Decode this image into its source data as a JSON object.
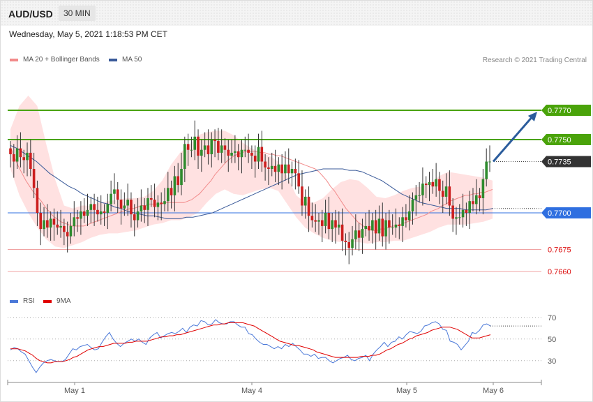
{
  "header": {
    "symbol": "AUD/USD",
    "timeframe": "30 MIN",
    "datetime": "Wednesday, May 5, 2021 1:18:53 PM CET"
  },
  "legend": {
    "ma20_label": "MA 20 + Bollinger Bands",
    "ma20_color": "#f28b8b",
    "ma50_label": "MA 50",
    "ma50_color": "#3a5a99",
    "credit": "Research © 2021 Trading Central"
  },
  "rsi_legend": {
    "rsi_label": "RSI",
    "rsi_color": "#4a78d8",
    "ma_label": "9MA",
    "ma_color": "#e00000"
  },
  "colors": {
    "bull": "#2e8b2e",
    "bear": "#cc1f1f",
    "target": "#4aa30a",
    "support": "#2f6fe0",
    "low": "#f0a3a3",
    "current": "#333333",
    "arrow": "#2b5c9c",
    "band": "#ffdcdc"
  },
  "chart_data": [
    {
      "type": "candlestick",
      "title": "AUD/USD 30 MIN",
      "ylim": [
        0.765,
        0.78
      ],
      "x_ticks": [
        "May 1",
        "May 4",
        "May 5",
        "May 6"
      ],
      "current_price": 0.7735,
      "levels": [
        {
          "value": 0.777,
          "label": "0.7770",
          "kind": "target"
        },
        {
          "value": 0.775,
          "label": "0.7750",
          "kind": "target"
        },
        {
          "value": 0.7735,
          "label": "0.7735",
          "kind": "current"
        },
        {
          "value": 0.77,
          "label": "0.7700",
          "kind": "support"
        },
        {
          "value": 0.7675,
          "label": "0.7675",
          "kind": "low"
        },
        {
          "value": 0.766,
          "label": "0.7660",
          "kind": "low"
        }
      ],
      "close": [
        0.774,
        0.7735,
        0.7744,
        0.7738,
        0.7736,
        0.7741,
        0.773,
        0.7717,
        0.77,
        0.7689,
        0.7695,
        0.769,
        0.7696,
        0.7692,
        0.769,
        0.7691,
        0.7687,
        0.7684,
        0.7691,
        0.7697,
        0.7696,
        0.7701,
        0.7698,
        0.7702,
        0.7706,
        0.7702,
        0.7699,
        0.7701,
        0.77,
        0.7706,
        0.7713,
        0.7716,
        0.7709,
        0.7703,
        0.7705,
        0.7709,
        0.7699,
        0.7695,
        0.7701,
        0.7705,
        0.7702,
        0.771,
        0.7709,
        0.7704,
        0.7707,
        0.7706,
        0.7708,
        0.7717,
        0.7712,
        0.7725,
        0.7719,
        0.773,
        0.7747,
        0.7743,
        0.7743,
        0.7752,
        0.7739,
        0.7743,
        0.7746,
        0.774,
        0.775,
        0.7749,
        0.7741,
        0.7746,
        0.7743,
        0.7739,
        0.7741,
        0.7742,
        0.7738,
        0.7743,
        0.7743,
        0.7741,
        0.7739,
        0.7735,
        0.7745,
        0.7735,
        0.7731,
        0.773,
        0.7732,
        0.7728,
        0.7733,
        0.7727,
        0.7733,
        0.7727,
        0.773,
        0.7727,
        0.7718,
        0.7705,
        0.7711,
        0.7698,
        0.7695,
        0.7694,
        0.7695,
        0.7691,
        0.77,
        0.7689,
        0.7695,
        0.769,
        0.7692,
        0.7681,
        0.768,
        0.7676,
        0.7682,
        0.7688,
        0.7683,
        0.7689,
        0.7691,
        0.7688,
        0.7695,
        0.7686,
        0.7696,
        0.7684,
        0.7695,
        0.769,
        0.769,
        0.7692,
        0.7691,
        0.7697,
        0.7695,
        0.7701,
        0.7709,
        0.7712,
        0.7712,
        0.772,
        0.7719,
        0.7721,
        0.7718,
        0.7723,
        0.7715,
        0.7711,
        0.7718,
        0.7705,
        0.7696,
        0.7697,
        0.7697,
        0.7702,
        0.77,
        0.7708,
        0.7706,
        0.7712,
        0.771,
        0.7723,
        0.7735,
        0.7735
      ],
      "ma20": [
        0.7745,
        0.7738,
        0.7732,
        0.7727,
        0.7722,
        0.7718,
        0.7714,
        0.7711,
        0.7708,
        0.7704,
        0.7701,
        0.7698,
        0.7696,
        0.7694,
        0.7693,
        0.7692,
        0.7691,
        0.7691,
        0.7691,
        0.7691,
        0.7692,
        0.7693,
        0.7694,
        0.7695,
        0.7696,
        0.7697,
        0.7698,
        0.7699,
        0.77,
        0.7701,
        0.7702,
        0.7703,
        0.7703,
        0.7704,
        0.7705,
        0.7705,
        0.7706,
        0.7706,
        0.7706,
        0.7706,
        0.7707,
        0.7707,
        0.7707,
        0.7707,
        0.7707,
        0.7707,
        0.7708,
        0.7709,
        0.7711,
        0.7713,
        0.7716,
        0.7719,
        0.7722,
        0.7726,
        0.7729,
        0.7732,
        0.7735,
        0.7737,
        0.7739,
        0.774,
        0.7741,
        0.7742,
        0.7742,
        0.7742,
        0.7742,
        0.7741,
        0.7741,
        0.774,
        0.774,
        0.7739,
        0.7739,
        0.7738,
        0.7737,
        0.7736,
        0.7735,
        0.7734,
        0.7733,
        0.7732,
        0.7731,
        0.773,
        0.7728,
        0.7725,
        0.7722,
        0.7718,
        0.7715,
        0.7711,
        0.7707,
        0.7703,
        0.77,
        0.7697,
        0.7694,
        0.7692,
        0.769,
        0.7689,
        0.7688,
        0.7688,
        0.7689,
        0.7689,
        0.769,
        0.7691,
        0.7691,
        0.7692,
        0.7693,
        0.7694,
        0.7695,
        0.7696,
        0.7697,
        0.7698,
        0.7699,
        0.7701,
        0.7702,
        0.7703,
        0.7705,
        0.7706,
        0.7708,
        0.7709,
        0.771,
        0.7711,
        0.7712,
        0.7712,
        0.7713,
        0.7713,
        0.7714,
        0.7714,
        0.7715,
        0.7716
      ],
      "ma50": [
        0.7746,
        0.7744,
        0.7741,
        0.7738,
        0.7735,
        0.7731,
        0.7727,
        0.7724,
        0.7721,
        0.7718,
        0.7716,
        0.7713,
        0.7711,
        0.7709,
        0.7707,
        0.7706,
        0.7704,
        0.7703,
        0.7701,
        0.77,
        0.7699,
        0.7698,
        0.7698,
        0.7697,
        0.7696,
        0.7696,
        0.7696,
        0.7697,
        0.7697,
        0.7698,
        0.7699,
        0.77,
        0.7702,
        0.7704,
        0.7706,
        0.7708,
        0.771,
        0.7712,
        0.7714,
        0.7716,
        0.7718,
        0.772,
        0.7722,
        0.7724,
        0.7726,
        0.7727,
        0.7728,
        0.7729,
        0.773,
        0.773,
        0.773,
        0.773,
        0.7729,
        0.7729,
        0.7728,
        0.7726,
        0.7724,
        0.7722,
        0.7719,
        0.7716,
        0.7713,
        0.7711,
        0.7709,
        0.7707,
        0.7706,
        0.7705,
        0.7704,
        0.7703,
        0.7703,
        0.7703,
        0.7702,
        0.7702,
        0.7702,
        0.7702,
        0.7703
      ],
      "bb_upper": [
        0.7757,
        0.7773,
        0.778,
        0.7773,
        0.7747,
        0.7723,
        0.7705,
        0.7703,
        0.7705,
        0.7705,
        0.7707,
        0.7708,
        0.7709,
        0.771,
        0.771,
        0.7711,
        0.7715,
        0.7722,
        0.7733,
        0.7741,
        0.7746,
        0.7753,
        0.7755,
        0.7756,
        0.7756,
        0.7753,
        0.7748,
        0.7744,
        0.7741,
        0.7739,
        0.7735,
        0.7725,
        0.7712,
        0.7707,
        0.7707,
        0.771,
        0.7716,
        0.7721,
        0.7723,
        0.7722,
        0.7717,
        0.7711,
        0.771,
        0.7712,
        0.7715,
        0.7717,
        0.7718,
        0.772,
        0.7725,
        0.7728,
        0.7727,
        0.7726,
        0.7725,
        0.7724,
        0.7722
      ],
      "bb_lower": [
        0.773,
        0.7712,
        0.77,
        0.769,
        0.7682,
        0.7677,
        0.7676,
        0.7678,
        0.768,
        0.7683,
        0.7685,
        0.7686,
        0.7686,
        0.7687,
        0.7688,
        0.769,
        0.7692,
        0.7693,
        0.7695,
        0.7695,
        0.7697,
        0.77,
        0.7707,
        0.7713,
        0.7716,
        0.7713,
        0.7712,
        0.7714,
        0.7716,
        0.7717,
        0.7715,
        0.7706,
        0.7697,
        0.769,
        0.7686,
        0.7683,
        0.7681,
        0.768,
        0.768,
        0.768,
        0.7679,
        0.768,
        0.768,
        0.7681,
        0.7681,
        0.7683,
        0.7685,
        0.7687,
        0.769,
        0.7692,
        0.7692,
        0.7692,
        0.7693,
        0.7694,
        0.7696
      ]
    },
    {
      "type": "line",
      "title": "RSI",
      "ylim": [
        15,
        75
      ],
      "yticks": [
        30,
        50,
        70
      ],
      "series": [
        {
          "name": "RSI",
          "values": [
            40,
            42,
            41,
            38,
            36,
            30,
            24,
            19,
            24,
            28,
            30,
            31,
            30,
            29,
            29,
            31,
            36,
            41,
            40,
            43,
            44,
            45,
            42,
            40,
            41,
            47,
            52,
            56,
            50,
            46,
            43,
            46,
            48,
            50,
            48,
            50,
            47,
            45,
            51,
            54,
            56,
            51,
            53,
            55,
            56,
            55,
            57,
            60,
            56,
            61,
            63,
            62,
            67,
            66,
            63,
            64,
            68,
            65,
            64,
            64,
            66,
            66,
            63,
            61,
            61,
            55,
            54,
            50,
            47,
            45,
            45,
            43,
            41,
            43,
            41,
            45,
            43,
            46,
            43,
            40,
            36,
            36,
            34,
            36,
            32,
            33,
            33,
            30,
            28,
            30,
            32,
            33,
            35,
            31,
            30,
            32,
            33,
            35,
            30,
            36,
            40,
            43,
            47,
            43,
            47,
            48,
            52,
            50,
            54,
            57,
            56,
            55,
            57,
            62,
            63,
            65,
            66,
            64,
            59,
            58,
            48,
            47,
            45,
            40,
            44,
            48,
            56,
            55,
            58,
            63,
            64,
            62
          ]
        },
        {
          "name": "9MA",
          "values": [
            41,
            41,
            41,
            40,
            39,
            37,
            35,
            32,
            30,
            29,
            28,
            28,
            29,
            29,
            29,
            30,
            31,
            33,
            34,
            36,
            38,
            40,
            41,
            42,
            43,
            43,
            44,
            45,
            46,
            46,
            46,
            46,
            47,
            47,
            48,
            48,
            48,
            48,
            49,
            50,
            51,
            52,
            52,
            53,
            53,
            54,
            54,
            55,
            56,
            57,
            58,
            59,
            60,
            61,
            62,
            63,
            63,
            64,
            64,
            65,
            65,
            65,
            65,
            65,
            64,
            63,
            62,
            60,
            58,
            56,
            54,
            52,
            50,
            48,
            47,
            46,
            45,
            44,
            44,
            43,
            42,
            41,
            40,
            38,
            37,
            36,
            35,
            34,
            33,
            33,
            33,
            33,
            33,
            33,
            33,
            34,
            34,
            34,
            35,
            35,
            36,
            38,
            40,
            41,
            43,
            45,
            46,
            48,
            50,
            51,
            53,
            54,
            55,
            56,
            58,
            59,
            60,
            61,
            61,
            61,
            60,
            59,
            57,
            55,
            53,
            51,
            51,
            51,
            52,
            53,
            54
          ]
        }
      ]
    }
  ]
}
